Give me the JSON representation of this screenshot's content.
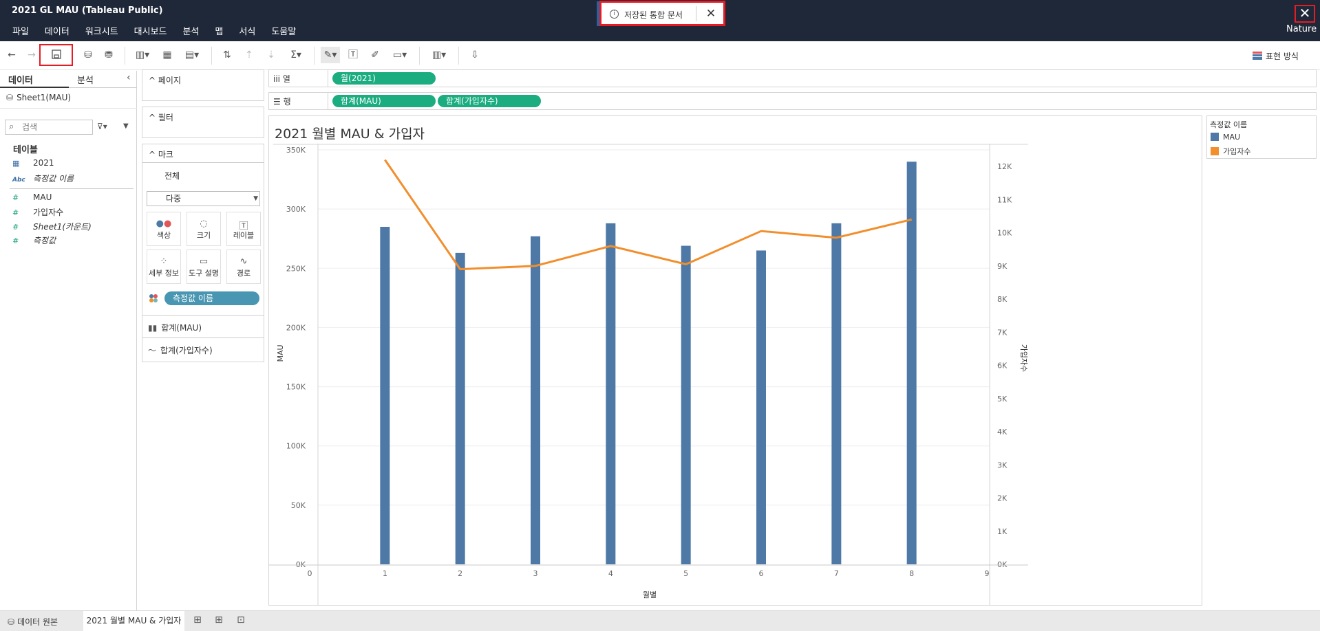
{
  "app": {
    "title": "2021 GL MAU (Tableau Public)",
    "user": "Nature",
    "close_glyph": "✕"
  },
  "menu": [
    "파일",
    "데이터",
    "워크시트",
    "대시보드",
    "분석",
    "맵",
    "서식",
    "도움말"
  ],
  "toast": {
    "text": "저장된 통합 문서",
    "icon": "info-icon",
    "close_glyph": "✕"
  },
  "toolbar": {
    "present_mode_label": "표현 방식",
    "icons": [
      "back-icon",
      "forward-icon",
      "save-icon",
      "new-datasource-icon",
      "pause-updates-icon",
      "new-worksheet-icon",
      "duplicate-icon",
      "clear-sheet-icon",
      "swap-icon",
      "sort-ascending-icon",
      "sort-descending-icon",
      "totals-icon",
      "highlight-icon",
      "labels-icon",
      "annotate-icon",
      "fit-icon",
      "show-me-icon",
      "share-icon"
    ]
  },
  "data_pane": {
    "tabs": [
      "데이터",
      "분석"
    ],
    "datasource": "Sheet1(MAU)",
    "search_placeholder": "검색",
    "tables_heading": "테이블",
    "dimensions": [
      {
        "type": "date",
        "icon": "calendar-icon",
        "name": "2021",
        "italic": false
      },
      {
        "type": "abc",
        "icon": "Abc",
        "name": "측정값 이름",
        "italic": true
      }
    ],
    "measures": [
      {
        "type": "num",
        "icon": "#",
        "name": "MAU",
        "italic": false
      },
      {
        "type": "num",
        "icon": "#",
        "name": "가입자수",
        "italic": false
      },
      {
        "type": "num",
        "icon": "#",
        "name": "Sheet1(카운트)",
        "italic": true
      },
      {
        "type": "num",
        "icon": "#",
        "name": "측정값",
        "italic": true
      }
    ]
  },
  "cards": {
    "pages": "페이지",
    "filters": "필터",
    "marks": "마크",
    "marks_all": "전체",
    "marks_type": "다중",
    "mark_buttons": [
      "색상",
      "크기",
      "레이블",
      "세부 정보",
      "도구 설명",
      "경로"
    ],
    "measure_names_pill": "측정값 이름",
    "layers": [
      "합계(MAU)",
      "합계(가입자수)"
    ]
  },
  "shelves": {
    "columns_label": "열",
    "rows_label": "행",
    "columns_pills": [
      "월(2021)"
    ],
    "rows_pills": [
      "합계(MAU)",
      "합계(가입자수)"
    ]
  },
  "legend": {
    "title": "측정값 이름",
    "items": [
      {
        "name": "MAU",
        "color": "#4e79a7"
      },
      {
        "name": "가입자수",
        "color": "#f28e2b"
      }
    ]
  },
  "bottom": {
    "datasource_tab": "데이터 원본",
    "sheet_tab": "2021 월별 MAU & 가입자"
  },
  "chart_data": {
    "type": "bar",
    "title": "2021 월별 MAU & 가입자",
    "xlabel": "월별",
    "ylabel": "MAU",
    "y2label": "가입자수",
    "x": [
      1,
      2,
      3,
      4,
      5,
      6,
      7,
      8
    ],
    "xlim": [
      0,
      9
    ],
    "xticks": [
      "0",
      "1",
      "2",
      "3",
      "4",
      "5",
      "6",
      "7",
      "8",
      "9"
    ],
    "ylim": [
      0,
      350000
    ],
    "yticks": [
      "0K",
      "50K",
      "100K",
      "150K",
      "200K",
      "250K",
      "300K",
      "350K"
    ],
    "y2lim": [
      0,
      12500
    ],
    "y2ticks": [
      "0K",
      "1K",
      "2K",
      "3K",
      "4K",
      "5K",
      "6K",
      "7K",
      "8K",
      "9K",
      "10K",
      "11K",
      "12K"
    ],
    "grid": true,
    "series": [
      {
        "name": "MAU",
        "type": "bar",
        "axis": "left",
        "color": "#4e79a7",
        "values": [
          285000,
          263000,
          277000,
          288000,
          269000,
          265000,
          288000,
          340000
        ]
      },
      {
        "name": "가입자수",
        "type": "line",
        "axis": "right",
        "color": "#f28e2b",
        "values": [
          12200,
          8900,
          9000,
          9600,
          9050,
          10050,
          9850,
          10400
        ]
      }
    ]
  }
}
